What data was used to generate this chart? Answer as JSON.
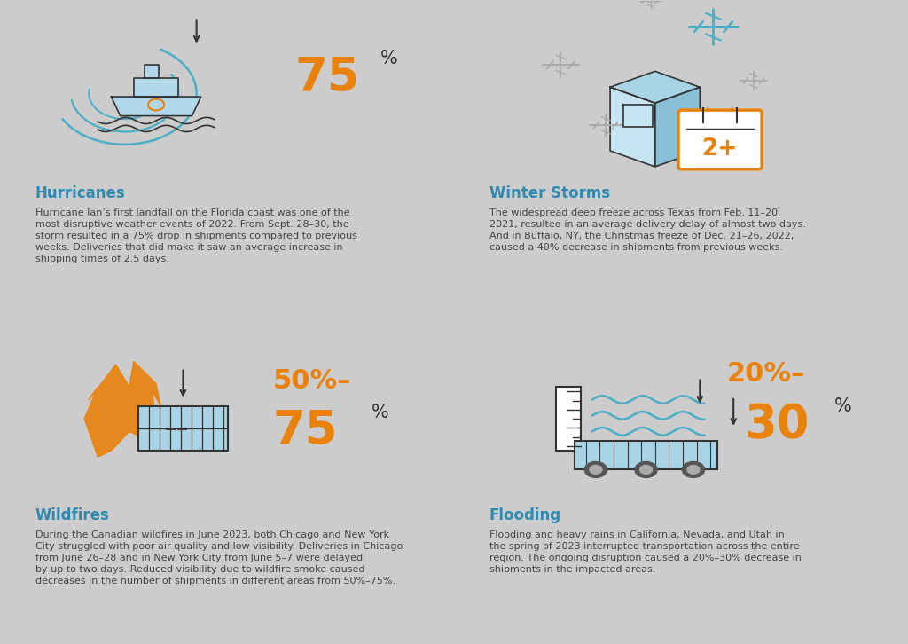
{
  "bg_gray": "#e8e8e8",
  "bg_white": "#ffffff",
  "border_color": "#ffffff",
  "orange_color": "#E8820C",
  "blue_color": "#2E8AB0",
  "dark_text": "#444444",
  "light_blue_icon": "#a8d4e6",
  "icon_outline": "#333333",
  "quadrants": [
    {
      "bg": "#e8e8e8",
      "title": "Hurricanes",
      "body": "Hurricane Ian’s first landfall on the Florida coast was one of the\nmost disruptive weather events of 2022. From Sept. 28–30, the\nstorm resulted in a 75% drop in shipments compared to previous\nweeks. Deliveries that did make it saw an average increase in\nshipping times of 2.5 days.",
      "icon_type": "hurricane",
      "stat_big": "75",
      "stat_small": "%",
      "stat_prefix": ""
    },
    {
      "bg": "#ffffff",
      "title": "Winter Storms",
      "body": "The widespread deep freeze across Texas from Feb. 11–20,\n2021, resulted in an average delivery delay of almost two days.\nAnd in Buffalo, NY, the Christmas freeze of Dec. 21–26, 2022,\ncaused a 40% decrease in shipments from previous weeks.",
      "icon_type": "winter",
      "stat_big": "2+",
      "stat_small": "",
      "stat_prefix": ""
    },
    {
      "bg": "#ffffff",
      "title": "Wildfires",
      "body": "During the Canadian wildfires in June 2023, both Chicago and New York\nCity struggled with poor air quality and low visibility. Deliveries in Chicago\nfrom June 26–28 and in New York City from June 5–7 were delayed\nby up to two days. Reduced visibility due to wildfire smoke caused\ndecreases in the number of shipments in different areas from 50%–75%.",
      "icon_type": "wildfire",
      "stat_big": "75",
      "stat_small": "%",
      "stat_prefix": "50%–"
    },
    {
      "bg": "#e8e8e8",
      "title": "Flooding",
      "body": "Flooding and heavy rains in California, Nevada, and Utah in\nthe spring of 2023 interrupted transportation across the entire\nregion. The ongoing disruption caused a 20%–30% decrease in\nshipments in the impacted areas.",
      "icon_type": "flooding",
      "stat_big": "30",
      "stat_small": "%",
      "stat_prefix": "20%–"
    }
  ]
}
